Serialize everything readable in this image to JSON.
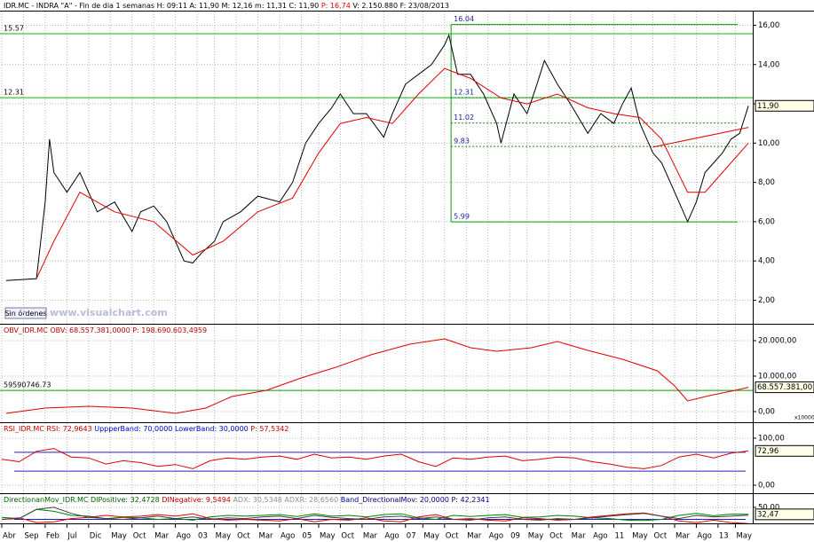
{
  "chart_data": [
    {
      "type": "line",
      "title": [
        "IDR.MC - INDRA \"A\" - Fin de dia 1 semanas  H: 09:11  A: 11,90  M: 12,16  m: 11,31  C: 11,90  ",
        "P: 16,74",
        "  V: 2.150.880  F: 23/08/2013"
      ],
      "title_colors": [
        "#000000",
        "#e00000",
        "#000000"
      ],
      "series": [
        {
          "color": "#000000",
          "x": [
            1,
            8,
            10,
            11,
            12,
            15,
            18,
            22,
            26,
            30,
            32,
            35,
            38,
            42,
            44,
            46,
            49,
            51,
            55,
            59,
            64,
            67,
            70,
            73,
            76,
            78,
            81,
            84,
            88,
            90,
            93,
            96,
            99,
            102,
            103,
            105,
            108,
            111,
            114,
            115,
            118,
            121,
            123,
            125,
            128,
            131,
            135,
            138,
            141,
            143,
            145,
            147,
            150,
            152,
            154,
            156,
            158,
            160,
            162,
            164,
            166,
            168,
            170,
            172
          ],
          "values": [
            3.0,
            3.1,
            7.0,
            10.2,
            8.5,
            7.5,
            8.5,
            6.5,
            7.0,
            5.5,
            6.5,
            6.8,
            6.0,
            4.0,
            3.9,
            4.4,
            5.0,
            6.0,
            6.5,
            7.3,
            7.0,
            8.0,
            10.0,
            11.0,
            11.8,
            12.5,
            11.5,
            11.5,
            10.3,
            11.5,
            13.0,
            13.5,
            14.0,
            15.0,
            15.5,
            13.5,
            13.5,
            12.5,
            11.0,
            10.0,
            12.5,
            11.5,
            12.8,
            14.2,
            13.0,
            12.0,
            10.5,
            11.5,
            11.0,
            12.0,
            12.8,
            11.0,
            9.5,
            9.0,
            8.0,
            7.0,
            6.0,
            7.0,
            8.5,
            9.0,
            9.5,
            10.2,
            10.5,
            11.9
          ]
        },
        {
          "color": "#e00000",
          "x": [
            8,
            12,
            18,
            26,
            35,
            44,
            51,
            59,
            67,
            73,
            78,
            84,
            90,
            96,
            102,
            108,
            115,
            121,
            128,
            135,
            141,
            147,
            152,
            158,
            162,
            166,
            170,
            172
          ],
          "values": [
            3.1,
            5.0,
            7.5,
            6.5,
            6.0,
            4.3,
            5.0,
            6.5,
            7.2,
            9.5,
            11.0,
            11.3,
            11.0,
            12.5,
            13.8,
            13.3,
            12.3,
            12.0,
            12.5,
            11.8,
            11.5,
            11.3,
            10.2,
            7.5,
            7.5,
            8.5,
            9.5,
            10.0
          ]
        }
      ],
      "ylim": [
        0.8,
        16.7
      ],
      "yticks": [
        {
          "value": 2,
          "label": "2,00"
        },
        {
          "value": 4,
          "label": "4,00"
        },
        {
          "value": 6,
          "label": "6,00"
        },
        {
          "value": 8,
          "label": "8,00"
        },
        {
          "value": 10,
          "label": "10,00"
        },
        {
          "value": 12,
          "label": "12,00"
        },
        {
          "value": 14,
          "label": "14,00"
        },
        {
          "value": 16,
          "label": "16,00"
        }
      ],
      "grid": true,
      "hlines": [
        {
          "value": 15.57,
          "label": "15.57"
        },
        {
          "value": 12.31,
          "label": "12.31"
        }
      ],
      "hline_color": "#00c000",
      "fib": {
        "x": [
          103.5,
          169.5
        ],
        "levels": [
          16.04,
          12.31,
          11.02,
          9.83,
          5.99
        ]
      },
      "trendline": {
        "x": [
          150,
          172
        ],
        "values": [
          9.8,
          10.8
        ],
        "color": "#e00000"
      },
      "last_label": "11,90"
    },
    {
      "type": "line",
      "title": [
        "OBV_IDR.MC  OBV: 68.557.381,0000  P: 198.690.603,4959"
      ],
      "title_colors": [
        "#c00000"
      ],
      "series": [
        {
          "color": "#e00000",
          "x": [
            1,
            10,
            20,
            30,
            40,
            47,
            53,
            61,
            69,
            77,
            85,
            94,
            102,
            108,
            114,
            122,
            128,
            135,
            143,
            151,
            155,
            158,
            163,
            169,
            172
          ],
          "values": [
            -500,
            1000,
            1500,
            1000,
            -500,
            1000,
            4250,
            6000,
            9500,
            12500,
            16000,
            19000,
            20500,
            18000,
            17000,
            18000,
            19750,
            17250,
            14750,
            11500,
            7250,
            3000,
            4500,
            6000,
            6855.74
          ]
        }
      ],
      "ylim": [
        -3000,
        24500
      ],
      "yticks": [
        {
          "value": 0,
          "label": "0,00"
        },
        {
          "value": 10000,
          "label": "10.000,00"
        },
        {
          "value": 20000,
          "label": "20.000,00"
        }
      ],
      "grid": true,
      "multiplier": "x10000",
      "hlines": [
        {
          "value": 5959.07,
          "label": "59590746.73"
        }
      ],
      "hline_color": "#00a000",
      "last_label": "68.557.381,00"
    },
    {
      "type": "line",
      "title": [
        "RSI_IDR.MC  RSI: 72,9643  ",
        "UppperBand: 70,0000  LowerBand: 30,0000",
        "  P: 57,5342"
      ],
      "title_colors": [
        "#c00000",
        "#0000c0",
        "#c00000"
      ],
      "x": [
        0,
        4,
        8,
        12,
        16,
        20,
        24,
        28,
        32,
        36,
        40,
        44,
        48,
        52,
        56,
        60,
        64,
        68,
        72,
        76,
        80,
        84,
        88,
        92,
        96,
        100,
        104,
        108,
        112,
        116,
        120,
        124,
        128,
        132,
        136,
        140,
        144,
        148,
        152,
        156,
        160,
        164,
        168,
        172
      ],
      "series": [
        {
          "color": "#e00000",
          "values": [
            55,
            50,
            72,
            78,
            60,
            58,
            45,
            52,
            48,
            40,
            44,
            35,
            52,
            58,
            55,
            60,
            62,
            55,
            66,
            58,
            60,
            55,
            62,
            66,
            50,
            40,
            58,
            55,
            60,
            62,
            52,
            55,
            60,
            58,
            50,
            45,
            38,
            35,
            42,
            60,
            66,
            58,
            68,
            72.96
          ]
        }
      ],
      "ylim": [
        -17,
        132
      ],
      "yticks": [
        {
          "value": 0,
          "label": "0,00"
        },
        {
          "value": 100,
          "label": "100,00"
        }
      ],
      "grid": true,
      "bands": [
        70,
        30
      ],
      "band_color": "#2020c0",
      "last_label": "72,96"
    },
    {
      "type": "line",
      "title": [
        "DirectionanMov_IDR.MC  DIPositive: 32,4728  ",
        "DINegative: 9,5494  ",
        "ADX: 30,5348  ADXR: 28,6560  ",
        "Band_DirectionalMov: 20,0000  P: 42,2341"
      ],
      "title_colors": [
        "#006000",
        "#c00000",
        "#909090",
        "#000080"
      ],
      "x": [
        0,
        4,
        8,
        12,
        16,
        20,
        24,
        28,
        32,
        36,
        40,
        44,
        48,
        52,
        56,
        60,
        64,
        68,
        72,
        76,
        80,
        84,
        88,
        92,
        96,
        100,
        104,
        108,
        112,
        116,
        120,
        124,
        128,
        132,
        136,
        140,
        144,
        148,
        152,
        156,
        160,
        164,
        168,
        172
      ],
      "series": [
        {
          "color": "#008000",
          "values": [
            25,
            22,
            45,
            40,
            30,
            28,
            22,
            25,
            24,
            20,
            22,
            18,
            26,
            30,
            28,
            30,
            32,
            27,
            34,
            28,
            30,
            26,
            32,
            34,
            24,
            20,
            30,
            27,
            30,
            32,
            25,
            26,
            30,
            28,
            24,
            22,
            18,
            17,
            20,
            30,
            35,
            29,
            33,
            32.47
          ]
        },
        {
          "color": "#e00000",
          "values": [
            20,
            24,
            12,
            14,
            22,
            25,
            30,
            26,
            28,
            32,
            28,
            34,
            22,
            18,
            20,
            18,
            16,
            22,
            14,
            20,
            18,
            24,
            16,
            14,
            26,
            32,
            20,
            22,
            18,
            16,
            24,
            22,
            18,
            20,
            26,
            30,
            34,
            36,
            28,
            16,
            12,
            18,
            12,
            9.55
          ]
        },
        {
          "color": "#404040",
          "values": [
            20,
            22,
            45,
            50,
            35,
            25,
            22,
            20,
            24,
            28,
            22,
            26,
            20,
            24,
            22,
            26,
            28,
            22,
            30,
            25,
            22,
            20,
            26,
            28,
            22,
            26,
            20,
            18,
            24,
            26,
            20,
            18,
            22,
            20,
            24,
            28,
            32,
            35,
            28,
            22,
            30,
            26,
            28,
            30.53
          ]
        }
      ],
      "ylim": [
        10,
        83
      ],
      "yticks": [
        {
          "value": 50,
          "label": "50,00"
        }
      ],
      "grid": true,
      "bands": [
        20
      ],
      "band_color": "#2020c0",
      "last_label": "32,47",
      "xlim": [
        0,
        173
      ],
      "xticks": [
        {
          "value": 0,
          "label": "Abr"
        },
        {
          "value": 5,
          "label": "Sep"
        },
        {
          "value": 10,
          "label": "Feb"
        },
        {
          "value": 15,
          "label": "Jul"
        },
        {
          "value": 20,
          "label": "Dic"
        },
        {
          "value": 25,
          "label": "May"
        },
        {
          "value": 30,
          "label": "Oct"
        },
        {
          "value": 35,
          "label": "Mar"
        },
        {
          "value": 40,
          "label": "Ago"
        },
        {
          "value": 45,
          "label": "03"
        },
        {
          "value": 49,
          "label": "May"
        },
        {
          "value": 54,
          "label": "Oct"
        },
        {
          "value": 59,
          "label": "Mar"
        },
        {
          "value": 64,
          "label": "Ago"
        },
        {
          "value": 69,
          "label": "05"
        },
        {
          "value": 73,
          "label": "May"
        },
        {
          "value": 78,
          "label": "Oct"
        },
        {
          "value": 83,
          "label": "Mar"
        },
        {
          "value": 88,
          "label": "Ago"
        },
        {
          "value": 93,
          "label": "07"
        },
        {
          "value": 97,
          "label": "May"
        },
        {
          "value": 102,
          "label": "Oct"
        },
        {
          "value": 107,
          "label": "Mar"
        },
        {
          "value": 112,
          "label": "Ago"
        },
        {
          "value": 117,
          "label": "09"
        },
        {
          "value": 121,
          "label": "May"
        },
        {
          "value": 126,
          "label": "Oct"
        },
        {
          "value": 131,
          "label": "Mar"
        },
        {
          "value": 136,
          "label": "Ago"
        },
        {
          "value": 141,
          "label": "11"
        },
        {
          "value": 145,
          "label": "May"
        },
        {
          "value": 150,
          "label": "Oct"
        },
        {
          "value": 155,
          "label": "Mar"
        },
        {
          "value": 160,
          "label": "Ago"
        },
        {
          "value": 165,
          "label": "13"
        },
        {
          "value": 169,
          "label": "May"
        }
      ]
    }
  ],
  "button": "Sin órdenes",
  "watermark": "www.visualchart.com"
}
